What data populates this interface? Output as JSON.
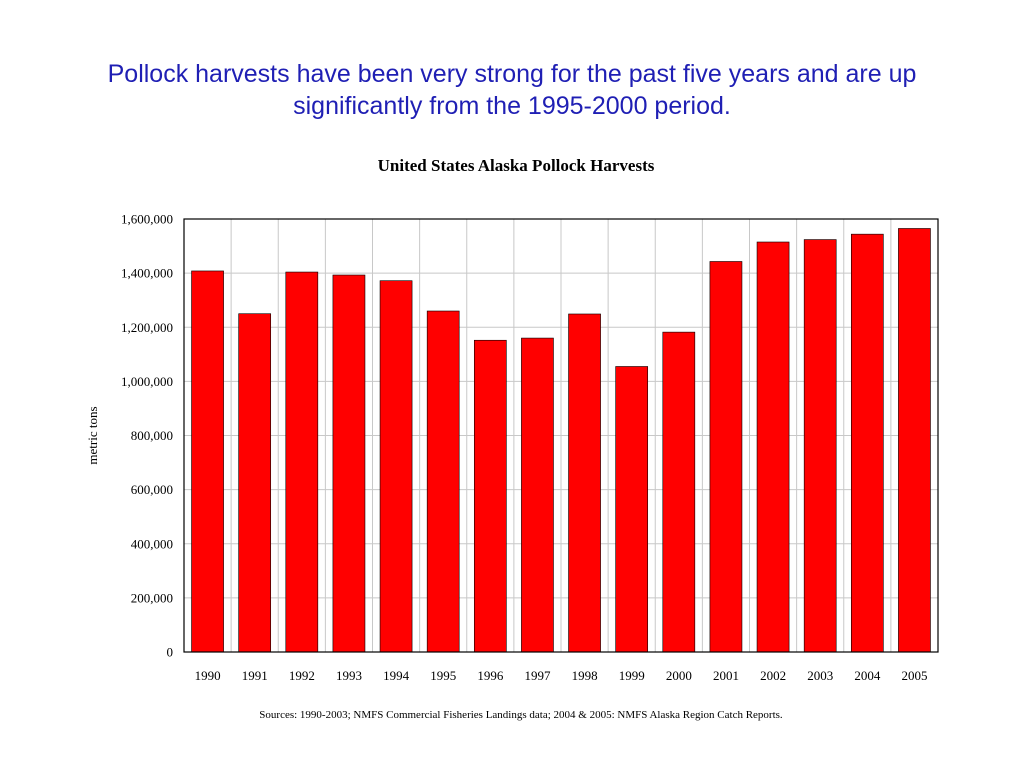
{
  "slide": {
    "headline": "Pollock harvests have been very strong for the past five years and are up significantly from the 1995-2000 period.",
    "source_note": "Sources:  1990-2003; NMFS Commercial Fisheries Landings data; 2004 & 2005:  NMFS Alaska Region Catch Reports."
  },
  "chart_data": {
    "type": "bar",
    "title": "United States Alaska Pollock Harvests",
    "xlabel": "",
    "ylabel": "metric tons",
    "categories": [
      "1990",
      "1991",
      "1992",
      "1993",
      "1994",
      "1995",
      "1996",
      "1997",
      "1998",
      "1999",
      "2000",
      "2001",
      "2002",
      "2003",
      "2004",
      "2005"
    ],
    "values": [
      1408000,
      1250000,
      1404000,
      1393000,
      1372000,
      1260000,
      1152000,
      1160000,
      1249000,
      1055000,
      1182000,
      1443000,
      1515000,
      1524000,
      1544000,
      1565000
    ],
    "ylim": [
      0,
      1600000
    ],
    "yticks": [
      "0",
      "200,000",
      "400,000",
      "600,000",
      "800,000",
      "1,000,000",
      "1,200,000",
      "1,400,000",
      "1,600,000"
    ],
    "grid": true,
    "bar_color": "#ff0000"
  }
}
